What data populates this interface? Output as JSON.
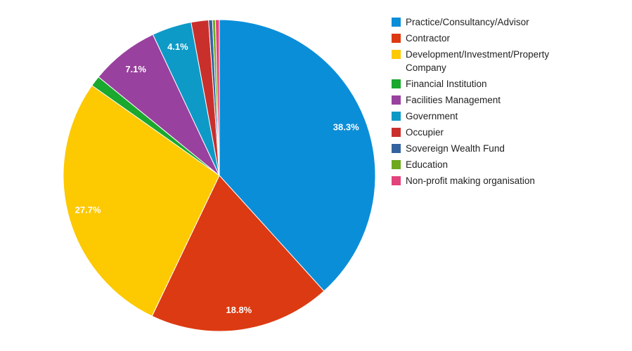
{
  "chart_data": {
    "type": "pie",
    "legend_position": "right",
    "slices": [
      {
        "label": "Practice/Consultancy/Advisor",
        "value": 38.3,
        "color": "#0b8ed8",
        "display": "38.3%"
      },
      {
        "label": "Contractor",
        "value": 18.8,
        "color": "#dc3a12",
        "display": "18.8%"
      },
      {
        "label": "Development/Investment/Property Company",
        "value": 27.7,
        "color": "#fdc900",
        "display": "27.7%"
      },
      {
        "label": "Financial Institution",
        "value": 1.1,
        "color": "#1aa82e",
        "display": ""
      },
      {
        "label": "Facilities Management",
        "value": 7.1,
        "color": "#99419e",
        "display": "7.1%"
      },
      {
        "label": "Government",
        "value": 4.1,
        "color": "#0e9ac6",
        "display": "4.1%"
      },
      {
        "label": "Occupier",
        "value": 1.8,
        "color": "#c9302c",
        "display": ""
      },
      {
        "label": "Sovereign Wealth Fund",
        "value": 0.4,
        "color": "#33639e",
        "display": ""
      },
      {
        "label": "Education",
        "value": 0.3,
        "color": "#6da81d",
        "display": ""
      },
      {
        "label": "Non-profit making organisation",
        "value": 0.4,
        "color": "#e2437b",
        "display": ""
      }
    ]
  }
}
